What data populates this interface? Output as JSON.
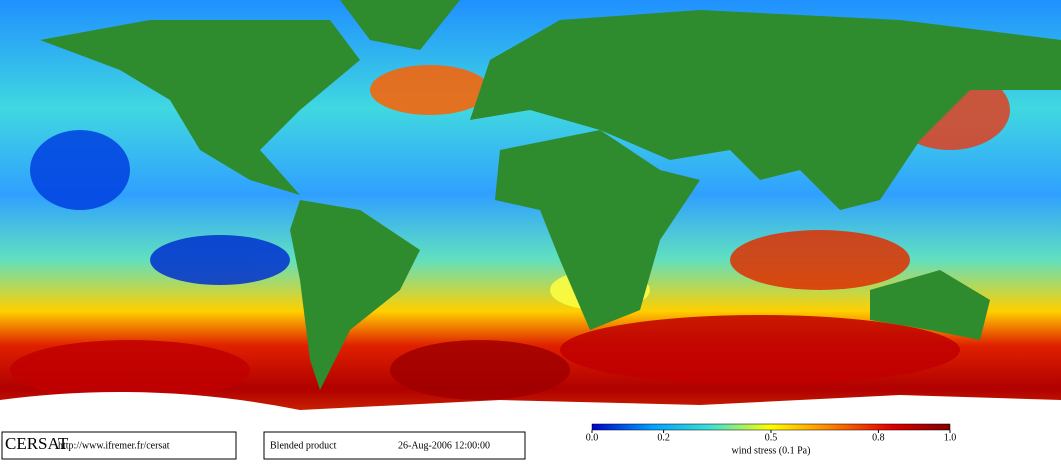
{
  "footer": {
    "logo": "CERSAT",
    "url": "http://www.ifremer.fr/cersat",
    "product": "Blended product",
    "date": "26-Aug-2006 12:00:00"
  },
  "colorbar": {
    "label": "wind stress (0.1 Pa)",
    "lim": [
      0,
      1
    ],
    "ticks": [
      {
        "value": 0,
        "label": "0.0"
      },
      0.2,
      0.5,
      0.8,
      {
        "value": 1,
        "label": "1.0"
      }
    ],
    "colors": [
      "#0000c8",
      "#00a0ff",
      "#40e0d0",
      "#ffff00",
      "#ff8000",
      "#e00000",
      "#800000"
    ]
  }
}
